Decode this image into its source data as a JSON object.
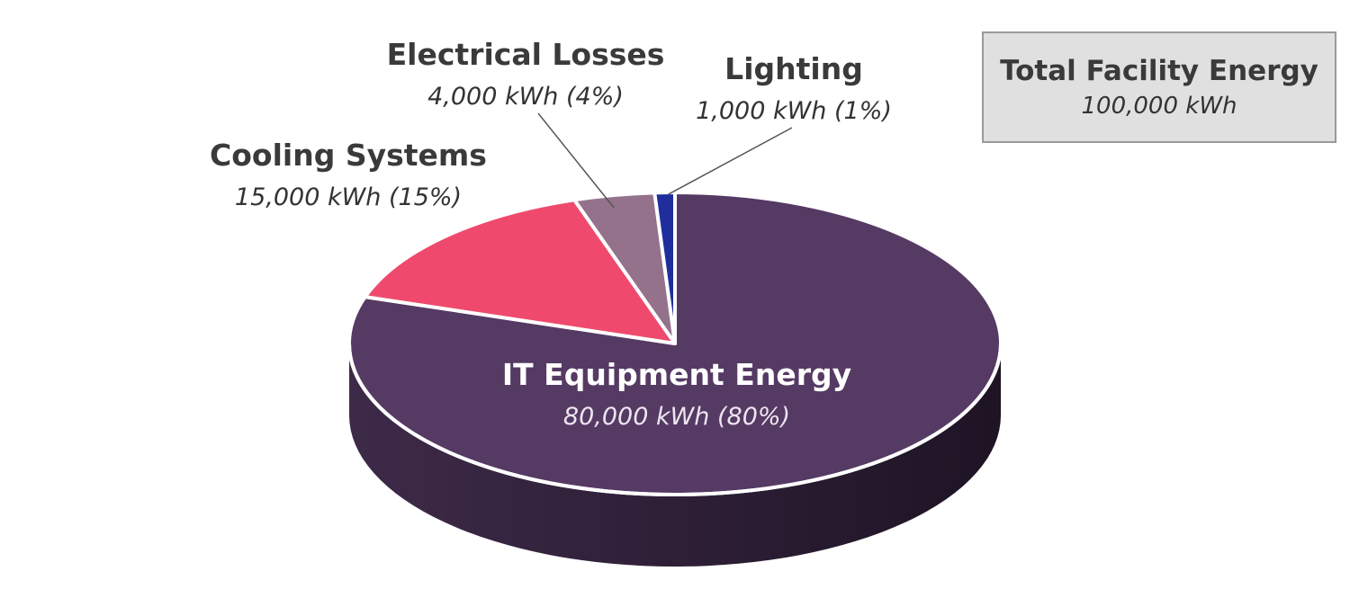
{
  "chart_data": {
    "type": "pie",
    "title": "",
    "series": [
      {
        "name": "IT Equipment Energy",
        "value": 80000,
        "value_label": "80,000 kWh (80%)",
        "percent": 80,
        "color": "#553a64"
      },
      {
        "name": "Cooling Systems",
        "value": 15000,
        "value_label": "15,000 kWh (15%)",
        "percent": 15,
        "color": "#ef4a6e"
      },
      {
        "name": "Electrical Losses",
        "value": 4000,
        "value_label": "4,000 kWh (4%)",
        "percent": 4,
        "color": "#94728b"
      },
      {
        "name": "Lighting",
        "value": 1000,
        "value_label": "1,000 kWh (1%)",
        "percent": 1,
        "color": "#1f2e9c"
      }
    ],
    "three_d": true,
    "legend": "none"
  },
  "total": {
    "label": "Total Facility Energy",
    "value_label": "100,000 kWh"
  }
}
